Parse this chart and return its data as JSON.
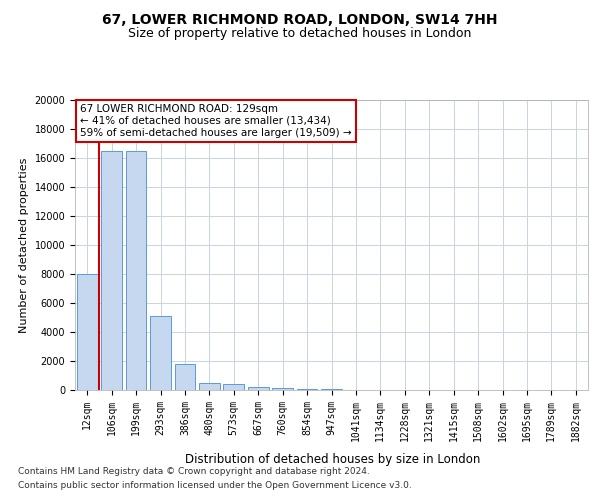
{
  "title1": "67, LOWER RICHMOND ROAD, LONDON, SW14 7HH",
  "title2": "Size of property relative to detached houses in London",
  "xlabel": "Distribution of detached houses by size in London",
  "ylabel": "Number of detached properties",
  "categories": [
    "12sqm",
    "106sqm",
    "199sqm",
    "293sqm",
    "386sqm",
    "480sqm",
    "573sqm",
    "667sqm",
    "760sqm",
    "854sqm",
    "947sqm",
    "1041sqm",
    "1134sqm",
    "1228sqm",
    "1321sqm",
    "1415sqm",
    "1508sqm",
    "1602sqm",
    "1695sqm",
    "1789sqm",
    "1882sqm"
  ],
  "values": [
    8000,
    16500,
    16500,
    5100,
    1800,
    500,
    380,
    200,
    130,
    100,
    50,
    0,
    0,
    0,
    0,
    0,
    0,
    0,
    0,
    0,
    0
  ],
  "bar_color": "#c5d8f0",
  "bar_edge_color": "#5b9bd5",
  "grid_color": "#c8d4e3",
  "annotation_text": "67 LOWER RICHMOND ROAD: 129sqm\n← 41% of detached houses are smaller (13,434)\n59% of semi-detached houses are larger (19,509) →",
  "vline_color": "#cc0000",
  "vline_x": 0.5,
  "ylim": [
    0,
    20000
  ],
  "yticks": [
    0,
    2000,
    4000,
    6000,
    8000,
    10000,
    12000,
    14000,
    16000,
    18000,
    20000
  ],
  "footer_line1": "Contains HM Land Registry data © Crown copyright and database right 2024.",
  "footer_line2": "Contains public sector information licensed under the Open Government Licence v3.0.",
  "title1_fontsize": 10,
  "title2_fontsize": 9,
  "xlabel_fontsize": 8.5,
  "ylabel_fontsize": 8,
  "tick_fontsize": 7,
  "annotation_fontsize": 7.5,
  "footer_fontsize": 6.5
}
